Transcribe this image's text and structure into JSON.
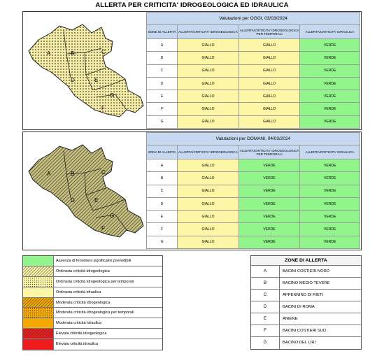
{
  "title": "ALLERTA PER CRITICITA' IDROGEOLOGICA ED IDRAULICA",
  "today": {
    "header": "Valutazioni per OGGI, 03/03/2024",
    "columns": [
      "ZONE DI ALLERTA",
      "ALLERTA/CRITICITA' IDROGEOLOGICA",
      "ALLERTA/CRITICITA' IDROGEOLOGICA PER TEMPORALI",
      "ALLERTA/CRITICITA' IDRAULICA"
    ],
    "rows": [
      {
        "zone": "A",
        "idro": "GIALLO",
        "temp": "GIALLO",
        "idra": "VERDE"
      },
      {
        "zone": "B",
        "idro": "GIALLO",
        "temp": "GIALLO",
        "idra": "VERDE"
      },
      {
        "zone": "C",
        "idro": "GIALLO",
        "temp": "GIALLO",
        "idra": "VERDE"
      },
      {
        "zone": "D",
        "idro": "GIALLO",
        "temp": "GIALLO",
        "idra": "VERDE"
      },
      {
        "zone": "E",
        "idro": "GIALLO",
        "temp": "GIALLO",
        "idra": "VERDE"
      },
      {
        "zone": "F",
        "idro": "GIALLO",
        "temp": "GIALLO",
        "idra": "VERDE"
      },
      {
        "zone": "G",
        "idro": "GIALLO",
        "temp": "GIALLO",
        "idra": "VERDE"
      }
    ]
  },
  "tomorrow": {
    "header": "Valutazioni per DOMANI, 04/03/2024",
    "columns": [
      "ZONA DI ALLERTA",
      "ALLERTA/CRITICITA' IDROGEOLOGICA",
      "ALLERTA/CRITICITA' IDROGEOLOGICA PER TEMPORALI",
      "ALLERTA/CRITICITA' IDRAULICA"
    ],
    "rows": [
      {
        "zone": "A",
        "idro": "GIALLO",
        "temp": "VERDE",
        "idra": "VERDE"
      },
      {
        "zone": "B",
        "idro": "GIALLO",
        "temp": "VERDE",
        "idra": "VERDE"
      },
      {
        "zone": "C",
        "idro": "GIALLO",
        "temp": "VERDE",
        "idra": "VERDE"
      },
      {
        "zone": "D",
        "idro": "GIALLO",
        "temp": "VERDE",
        "idra": "VERDE"
      },
      {
        "zone": "E",
        "idro": "GIALLO",
        "temp": "VERDE",
        "idra": "VERDE"
      },
      {
        "zone": "F",
        "idro": "GIALLO",
        "temp": "VERDE",
        "idra": "VERDE"
      },
      {
        "zone": "G",
        "idro": "GIALLO",
        "temp": "VERDE",
        "idra": "VERDE"
      }
    ]
  },
  "map_labels": [
    "A",
    "B",
    "C",
    "D",
    "E",
    "F",
    "G"
  ],
  "legend": [
    {
      "label": "Assenza di fenomeni significativi prevedibili",
      "pattern": "green"
    },
    {
      "label": "Ordinaria criticità idrogeologica",
      "pattern": "yellow-hatch"
    },
    {
      "label": "Ordinaria criticità idrogeologica per temporali",
      "pattern": "yellow-dots"
    },
    {
      "label": "Ordinaria criticità idraulica",
      "pattern": "yellow"
    },
    {
      "label": "Moderata criticità idrogeologica",
      "pattern": "orange-hatch"
    },
    {
      "label": "Moderata criticità idrogeologica per temporali",
      "pattern": "orange-dots"
    },
    {
      "label": "Moderata criticità idraulica",
      "pattern": "orange"
    },
    {
      "label": "Elevata criticità idrogeologica",
      "pattern": "red-hatch"
    },
    {
      "label": "Elevata criticità idraulica",
      "pattern": "red"
    }
  ],
  "zones": {
    "header": "ZONE DI ALLERTA",
    "items": [
      {
        "letter": "A",
        "name": "BACINI COSTIERI NORD"
      },
      {
        "letter": "B",
        "name": "BACINO MEDIO TEVERE"
      },
      {
        "letter": "C",
        "name": "APPENNINO DI RIETI"
      },
      {
        "letter": "D",
        "name": "BACINI DI ROMA"
      },
      {
        "letter": "E",
        "name": "ANIENE"
      },
      {
        "letter": "F",
        "name": "BACINI COSTIERI SUD"
      },
      {
        "letter": "G",
        "name": "BACINO DEL LIRI"
      }
    ]
  },
  "colors": {
    "yellow": "#fdf6a6",
    "green": "#92f58c",
    "header_blue": "#c6d9f1",
    "map_dots_fill": "#f7edab",
    "map_hatch_fill": "#c8c184",
    "orange": "#f5a800",
    "red": "#ee1c1c"
  }
}
